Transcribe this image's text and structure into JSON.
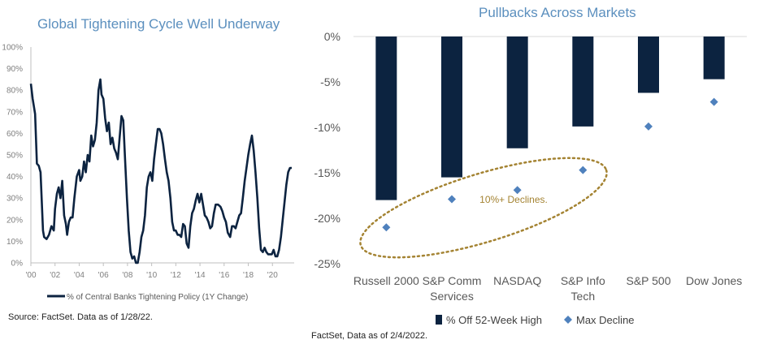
{
  "charts": {
    "left": {
      "title": "Global Tightening Cycle Well Underway",
      "source": "Source: FactSet. Data as of 1/28/22."
    },
    "right": {
      "title": "Pullbacks Across Markets",
      "source": "FactSet, Data as of 2/4/2022.",
      "annotation": "10%+ Declines."
    }
  },
  "colors": {
    "line": "#0c2340",
    "bar": "#0c2340",
    "marker": "#4f81bd",
    "title": "#5b8fbe",
    "ellipse": "#a48332"
  },
  "chart_data": [
    {
      "type": "line",
      "title": "Global Tightening Cycle Well Underway",
      "xlabel": "",
      "ylabel": "",
      "x_range": [
        2000,
        2021.8
      ],
      "ylim": [
        0,
        100
      ],
      "y_ticks": [
        "0%",
        "10%",
        "20%",
        "30%",
        "40%",
        "50%",
        "60%",
        "70%",
        "80%",
        "90%",
        "100%"
      ],
      "x_ticks": [
        "'00",
        "'02",
        "'04",
        "'06",
        "'08",
        "'10",
        "'12",
        "'14",
        "'16",
        "'18",
        "'20"
      ],
      "legend_position": "bottom",
      "grid": false,
      "series": [
        {
          "name": "% of Central Banks Tightening Policy (1Y Change)",
          "x": [
            2000.0,
            2000.15,
            2000.35,
            2000.5,
            2000.65,
            2000.8,
            2001.0,
            2001.1,
            2001.3,
            2001.5,
            2001.7,
            2001.9,
            2002.0,
            2002.15,
            2002.3,
            2002.45,
            2002.6,
            2002.75,
            2002.9,
            2003.0,
            2003.15,
            2003.3,
            2003.45,
            2003.6,
            2003.8,
            2004.0,
            2004.1,
            2004.25,
            2004.4,
            2004.55,
            2004.7,
            2004.85,
            2005.0,
            2005.15,
            2005.3,
            2005.45,
            2005.6,
            2005.75,
            2005.85,
            2006.0,
            2006.15,
            2006.3,
            2006.45,
            2006.6,
            2006.75,
            2006.9,
            2007.05,
            2007.2,
            2007.35,
            2007.5,
            2007.65,
            2007.8,
            2007.95,
            2008.1,
            2008.25,
            2008.4,
            2008.55,
            2008.7,
            2008.85,
            2009.0,
            2009.15,
            2009.3,
            2009.45,
            2009.6,
            2009.75,
            2009.9,
            2010.05,
            2010.2,
            2010.35,
            2010.5,
            2010.65,
            2010.8,
            2010.95,
            2011.1,
            2011.25,
            2011.4,
            2011.55,
            2011.7,
            2011.85,
            2012.0,
            2012.15,
            2012.3,
            2012.45,
            2012.6,
            2012.75,
            2012.9,
            2013.05,
            2013.2,
            2013.35,
            2013.5,
            2013.65,
            2013.8,
            2013.95,
            2014.1,
            2014.25,
            2014.4,
            2014.55,
            2014.7,
            2014.85,
            2015.0,
            2015.15,
            2015.3,
            2015.5,
            2015.7,
            2015.85,
            2016.0,
            2016.15,
            2016.3,
            2016.5,
            2016.65,
            2016.8,
            2016.95,
            2017.1,
            2017.25,
            2017.4,
            2017.55,
            2017.7,
            2017.85,
            2018.0,
            2018.15,
            2018.3,
            2018.45,
            2018.6,
            2018.75,
            2018.9,
            2019.05,
            2019.2,
            2019.35,
            2019.5,
            2019.65,
            2019.8,
            2019.95,
            2020.1,
            2020.25,
            2020.4,
            2020.55,
            2020.7,
            2020.85,
            2021.0,
            2021.15,
            2021.3,
            2021.45,
            2021.6
          ],
          "y": [
            83,
            76,
            69,
            46,
            45,
            42,
            15,
            12,
            11,
            13,
            17,
            15,
            25,
            32,
            35,
            30,
            38,
            22,
            18,
            13,
            19,
            21,
            21,
            30,
            40,
            43,
            38,
            40,
            47,
            42,
            50,
            47,
            59,
            54,
            57,
            65,
            80,
            85,
            78,
            76,
            67,
            61,
            65,
            55,
            58,
            53,
            51,
            48,
            58,
            68,
            66,
            48,
            30,
            15,
            5,
            2,
            3,
            0,
            0,
            5,
            12,
            15,
            22,
            35,
            40,
            42,
            38,
            48,
            55,
            62,
            62,
            60,
            55,
            48,
            42,
            38,
            30,
            19,
            15,
            15,
            13,
            13,
            12,
            18,
            17,
            9,
            7,
            17,
            23,
            25,
            29,
            32,
            28,
            32,
            27,
            22,
            21,
            19,
            16,
            17,
            23,
            27,
            27,
            26,
            24,
            21,
            19,
            14,
            12,
            17,
            17,
            16,
            19,
            22,
            23,
            30,
            38,
            44,
            50,
            55,
            59,
            52,
            42,
            30,
            16,
            6,
            5,
            7,
            5,
            4,
            4,
            4,
            6,
            3,
            3,
            6,
            12,
            20,
            28,
            36,
            42,
            44,
            44
          ]
        }
      ]
    },
    {
      "type": "bar",
      "title": "Pullbacks Across Markets",
      "categories": [
        "Russell 2000",
        "S&P Comm Services",
        "NASDAQ",
        "S&P Info Tech",
        "S&P 500",
        "Dow Jones"
      ],
      "category_lines": [
        [
          "Russell 2000"
        ],
        [
          "S&P Comm",
          "Services"
        ],
        [
          "NASDAQ"
        ],
        [
          "S&P Info",
          "Tech"
        ],
        [
          "S&P 500"
        ],
        [
          "Dow Jones"
        ]
      ],
      "ylim": [
        -25,
        0
      ],
      "y_ticks": [
        "0%",
        "-5%",
        "-10%",
        "-15%",
        "-20%",
        "-25%"
      ],
      "xlabel": "",
      "ylabel": "",
      "legend_position": "bottom",
      "grid": false,
      "series": [
        {
          "name": "% Off 52-Week High",
          "kind": "bar",
          "values": [
            -18.0,
            -15.5,
            -12.3,
            -9.9,
            -6.2,
            -4.7
          ]
        },
        {
          "name": "Max Decline",
          "kind": "marker",
          "values": [
            -21.0,
            -17.9,
            -16.9,
            -14.7,
            -9.9,
            -7.2
          ]
        }
      ],
      "annotations": [
        "10%+ Declines."
      ]
    }
  ]
}
